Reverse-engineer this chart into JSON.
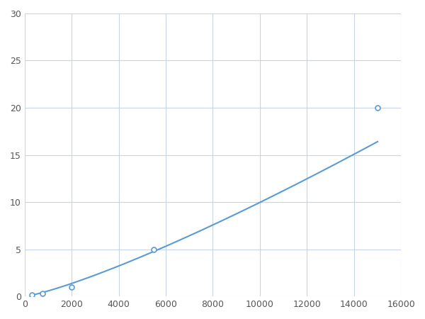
{
  "x": [
    300,
    750,
    2000,
    5500,
    15000
  ],
  "y": [
    0.2,
    0.3,
    1.0,
    5.0,
    20.0
  ],
  "line_color": "#5b9bd5",
  "marker_color": "#5b9bd5",
  "marker_size": 5,
  "line_width": 1.5,
  "xlim": [
    0,
    16000
  ],
  "ylim": [
    0,
    30
  ],
  "xticks": [
    0,
    2000,
    4000,
    6000,
    8000,
    10000,
    12000,
    14000,
    16000
  ],
  "yticks": [
    0,
    5,
    10,
    15,
    20,
    25,
    30
  ],
  "grid_color": "#c8d4e8",
  "background_color": "#ffffff",
  "spine_color": "#aaaaaa",
  "figsize": [
    6.0,
    4.5
  ],
  "dpi": 100
}
